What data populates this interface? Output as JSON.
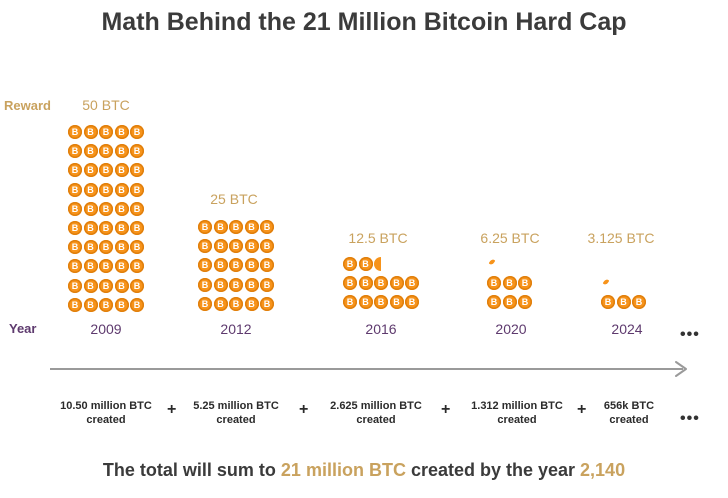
{
  "title": "Math Behind the 21 Million Bitcoin Hard Cap",
  "labels": {
    "reward": "Reward",
    "year": "Year"
  },
  "coin_glyph": "B",
  "columns": [
    {
      "reward": "50 BTC",
      "year": "2009",
      "created": [
        "10.50 million BTC",
        "created"
      ]
    },
    {
      "reward": "25 BTC",
      "year": "2012",
      "created": [
        "5.25 million BTC",
        "created"
      ]
    },
    {
      "reward": "12.5 BTC",
      "year": "2016",
      "created": [
        "2.625 million BTC",
        "created"
      ]
    },
    {
      "reward": "6.25 BTC",
      "year": "2020",
      "created": [
        "1.312 million BTC",
        "created"
      ]
    },
    {
      "reward": "3.125 BTC",
      "year": "2024",
      "created": [
        "656k BTC",
        "created"
      ]
    }
  ],
  "plus_sign": "+",
  "ellipsis": "•••",
  "summary": {
    "prefix": "The total will sum to ",
    "highlight_amount": "21 million BTC",
    "middle": " created by the year ",
    "highlight_year": "2,140"
  },
  "colors": {
    "coin": "#f7931a",
    "accent": "#c9a25e",
    "year": "#5e3a6e"
  }
}
